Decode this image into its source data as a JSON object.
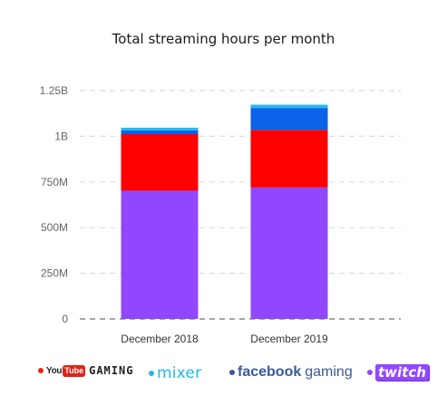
{
  "chart_data": {
    "type": "bar",
    "stacked": true,
    "title": "Total streaming hours per month",
    "categories": [
      "December 2018",
      "December 2019"
    ],
    "series": [
      {
        "name": "Twitch",
        "color": "#9147ff",
        "values": [
          702000000,
          720000000
        ]
      },
      {
        "name": "YouTube Gaming",
        "color": "#ff0000",
        "values": [
          310000000,
          315000000
        ]
      },
      {
        "name": "Facebook gaming",
        "color": "#0a62e8",
        "values": [
          20000000,
          120000000
        ]
      },
      {
        "name": "Mixer",
        "color": "#29b6f0",
        "values": [
          15000000,
          18000000
        ]
      }
    ],
    "ylim": [
      0,
      1250000000
    ],
    "yticks": [
      0,
      250000000,
      500000000,
      750000000,
      1000000000,
      1250000000
    ],
    "ytick_labels": [
      "0",
      "250M",
      "500M",
      "750M",
      "1B",
      "1.25B"
    ],
    "grid": true
  },
  "legend": {
    "youtube": {
      "you": "You",
      "tube": "Tube",
      "gaming": "GAMING",
      "color": "#e62117"
    },
    "mixer": {
      "label": "mixer",
      "color": "#1fbaed"
    },
    "facebook": {
      "brand": "facebook",
      "gaming": "gaming",
      "color": "#3b5998"
    },
    "twitch": {
      "label": "twitch",
      "color": "#9147ff"
    }
  }
}
